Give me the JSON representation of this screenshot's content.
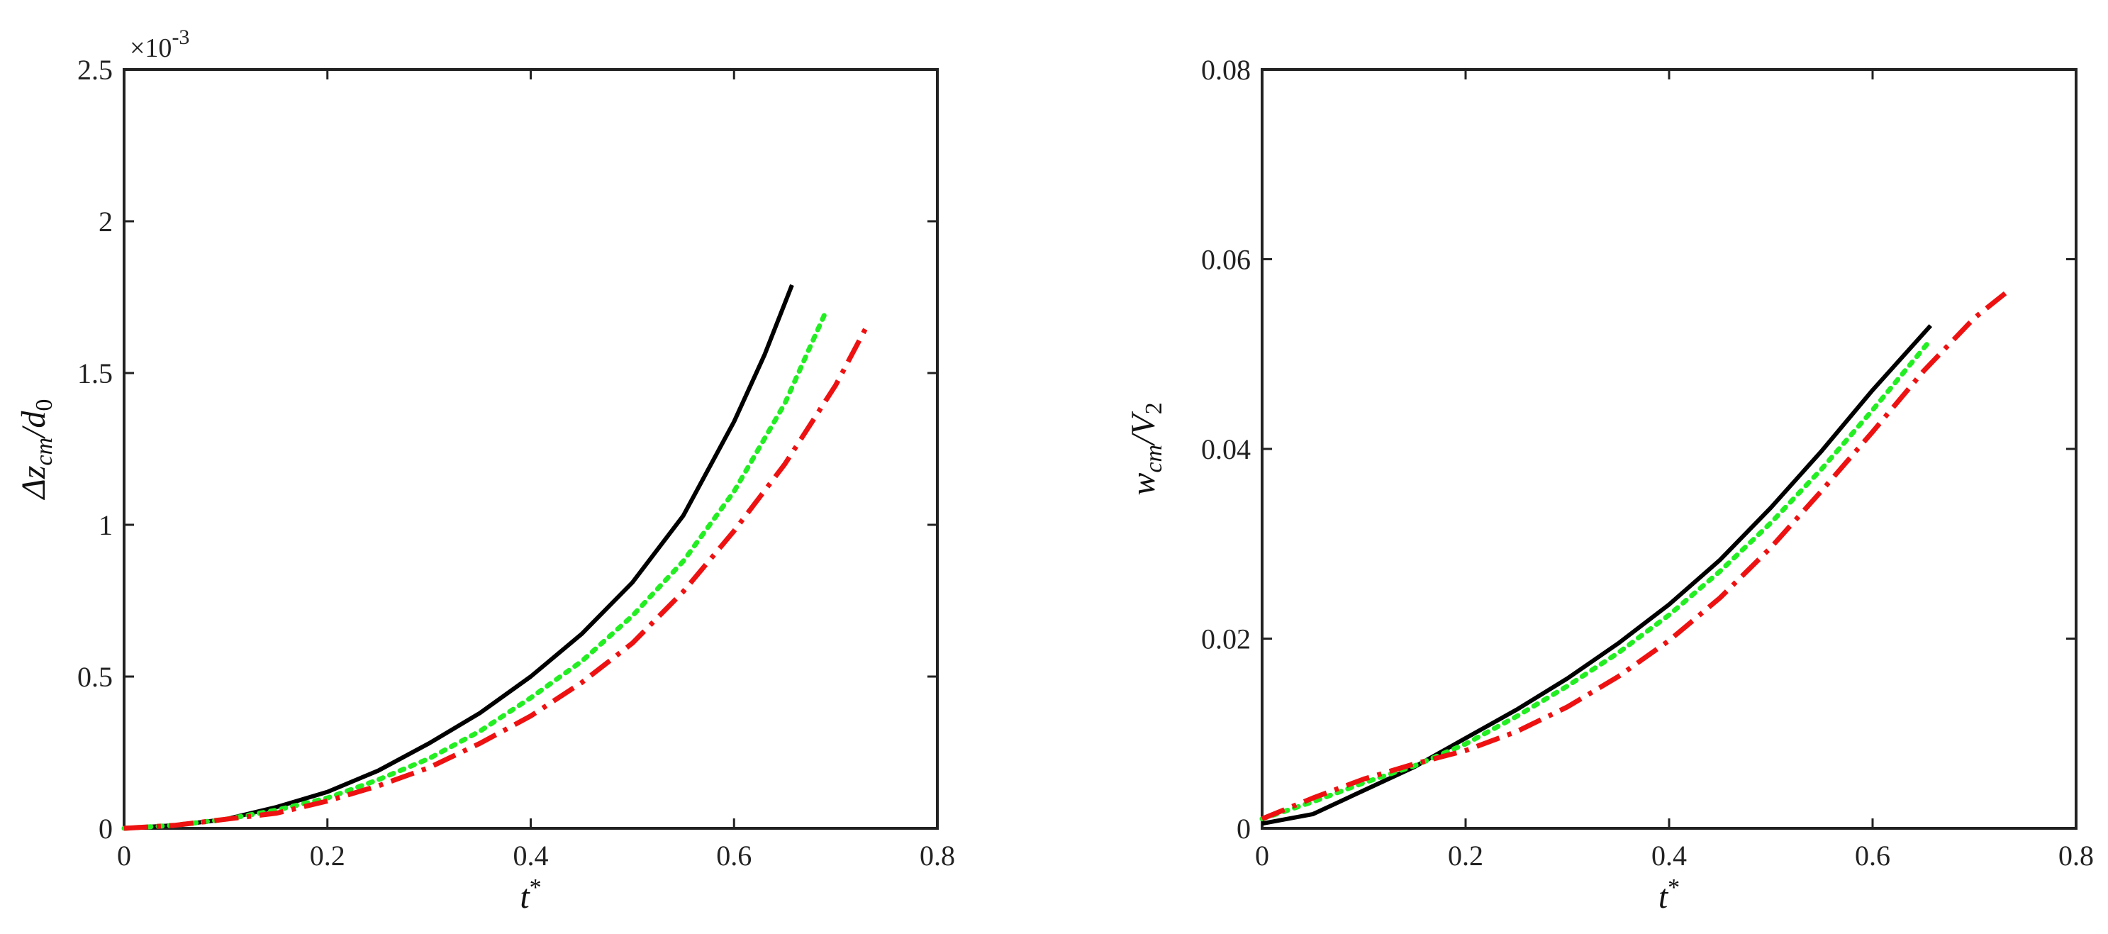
{
  "chart_data": [
    {
      "type": "line",
      "xlabel": "t*",
      "ylabel": "Δz_cm/d_0",
      "ylabel_parts": {
        "main": "Δz",
        "sub": "cm",
        "slash": "/d",
        "sub2": "0"
      },
      "xlabel_parts": {
        "main": "t",
        "sup": "*"
      },
      "xlim": [
        0,
        0.8
      ],
      "ylim": [
        0,
        2.5
      ],
      "y_exponent_label": "×10",
      "y_exponent_power": "-3",
      "xticks": [
        0,
        0.2,
        0.4,
        0.6,
        0.8
      ],
      "xtick_labels": [
        "0",
        "0.2",
        "0.4",
        "0.6",
        "0.8"
      ],
      "yticks": [
        0,
        0.5,
        1,
        1.5,
        2,
        2.5
      ],
      "ytick_labels": [
        "0",
        "0.5",
        "1",
        "1.5",
        "2",
        "2.5"
      ],
      "grid": false,
      "series": [
        {
          "color": "#000000",
          "style": "solid",
          "x": [
            0,
            0.05,
            0.1,
            0.15,
            0.2,
            0.25,
            0.3,
            0.35,
            0.4,
            0.45,
            0.5,
            0.55,
            0.6,
            0.63,
            0.657
          ],
          "y": [
            0,
            0.01,
            0.03,
            0.07,
            0.12,
            0.19,
            0.28,
            0.38,
            0.5,
            0.64,
            0.81,
            1.03,
            1.34,
            1.56,
            1.79
          ]
        },
        {
          "color": "#22ee22",
          "style": "dotted",
          "x": [
            0,
            0.05,
            0.1,
            0.15,
            0.2,
            0.25,
            0.3,
            0.35,
            0.4,
            0.45,
            0.5,
            0.55,
            0.6,
            0.65,
            0.69
          ],
          "y": [
            0,
            0.01,
            0.03,
            0.06,
            0.1,
            0.16,
            0.23,
            0.32,
            0.43,
            0.55,
            0.7,
            0.88,
            1.11,
            1.4,
            1.7
          ]
        },
        {
          "color": "#ee1111",
          "style": "dashdot",
          "x": [
            0,
            0.05,
            0.1,
            0.15,
            0.2,
            0.25,
            0.3,
            0.35,
            0.4,
            0.45,
            0.5,
            0.55,
            0.6,
            0.65,
            0.7,
            0.73
          ],
          "y": [
            0,
            0.01,
            0.03,
            0.05,
            0.09,
            0.14,
            0.2,
            0.28,
            0.37,
            0.48,
            0.61,
            0.78,
            0.98,
            1.2,
            1.46,
            1.65
          ]
        }
      ]
    },
    {
      "type": "line",
      "xlabel": "t*",
      "ylabel": "w_cm/V_2",
      "ylabel_parts": {
        "main": "w",
        "sub": "cm",
        "slash": "/V",
        "sub2": "2"
      },
      "xlabel_parts": {
        "main": "t",
        "sup": "*"
      },
      "xlim": [
        0,
        0.8
      ],
      "ylim": [
        0,
        0.08
      ],
      "xticks": [
        0,
        0.2,
        0.4,
        0.6,
        0.8
      ],
      "xtick_labels": [
        "0",
        "0.2",
        "0.4",
        "0.6",
        "0.8"
      ],
      "yticks": [
        0,
        0.02,
        0.04,
        0.06,
        0.08
      ],
      "ytick_labels": [
        "0",
        "0.02",
        "0.04",
        "0.06",
        "0.08"
      ],
      "grid": false,
      "series": [
        {
          "color": "#000000",
          "style": "solid",
          "x": [
            0,
            0.05,
            0.1,
            0.15,
            0.2,
            0.25,
            0.3,
            0.35,
            0.4,
            0.45,
            0.5,
            0.55,
            0.6,
            0.657
          ],
          "y": [
            0.0005,
            0.0015,
            0.004,
            0.0065,
            0.0095,
            0.0125,
            0.0158,
            0.0195,
            0.0236,
            0.0283,
            0.0338,
            0.0398,
            0.0462,
            0.053
          ]
        },
        {
          "color": "#22ee22",
          "style": "dotted",
          "x": [
            0,
            0.05,
            0.1,
            0.15,
            0.2,
            0.25,
            0.3,
            0.35,
            0.4,
            0.45,
            0.5,
            0.55,
            0.6,
            0.657
          ],
          "y": [
            0.001,
            0.0028,
            0.0048,
            0.0066,
            0.0089,
            0.0118,
            0.015,
            0.0185,
            0.0225,
            0.0271,
            0.0322,
            0.0379,
            0.0441,
            0.0515
          ]
        },
        {
          "color": "#ee1111",
          "style": "dashdot",
          "x": [
            0,
            0.05,
            0.1,
            0.15,
            0.2,
            0.25,
            0.3,
            0.35,
            0.4,
            0.45,
            0.5,
            0.55,
            0.6,
            0.65,
            0.7,
            0.735
          ],
          "y": [
            0.001,
            0.0032,
            0.0052,
            0.0068,
            0.0082,
            0.0102,
            0.0128,
            0.016,
            0.0198,
            0.0243,
            0.0296,
            0.0356,
            0.0418,
            0.0482,
            0.0538,
            0.0568
          ]
        }
      ]
    }
  ]
}
